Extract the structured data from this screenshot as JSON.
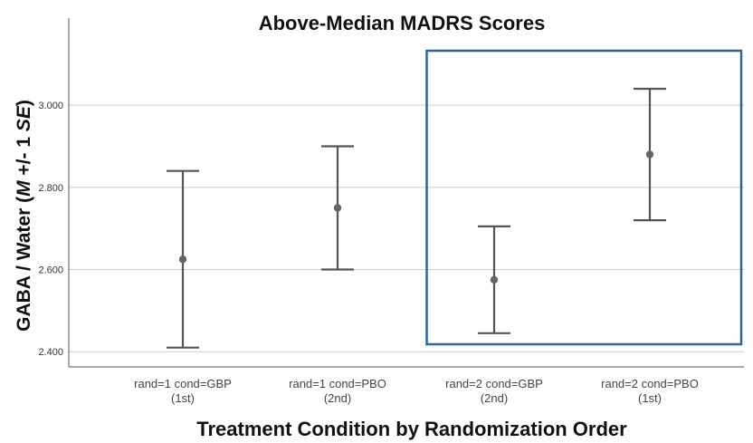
{
  "chart_data": {
    "type": "errorbar",
    "title": "Above-Median MADRS Scores",
    "xlabel": "Treatment Condition by Randomization Order",
    "ylabel_parts": [
      {
        "text": "GABA / Water (",
        "italic": false
      },
      {
        "text": "M",
        "italic": true
      },
      {
        "text": " +/- 1 ",
        "italic": false
      },
      {
        "text": "SE",
        "italic": true
      },
      {
        "text": ")",
        "italic": false
      }
    ],
    "categories": [
      [
        "rand=1 cond=GBP",
        "(1st)"
      ],
      [
        "rand=1 cond=PBO",
        "(2nd)"
      ],
      [
        "rand=2 cond=GBP",
        "(2nd)"
      ],
      [
        "rand=2 cond=PBO",
        "(1st)"
      ]
    ],
    "mean": [
      2.625,
      2.75,
      2.575,
      2.88
    ],
    "lower": [
      2.41,
      2.6,
      2.445,
      2.72
    ],
    "upper": [
      2.84,
      2.9,
      2.705,
      3.04
    ],
    "yticks": [
      "2.400",
      "2.600",
      "2.800",
      "3.000"
    ],
    "ytick_values": [
      2.4,
      2.6,
      2.8,
      3.0
    ],
    "ylim": [
      2.363,
      3.212
    ],
    "grid": true,
    "highlight_box_categories": [
      2,
      3
    ],
    "colors": {
      "errorbar": "#555555",
      "grid": "#cccccc",
      "highlight": "#2e6694",
      "axis": "#555555"
    }
  }
}
